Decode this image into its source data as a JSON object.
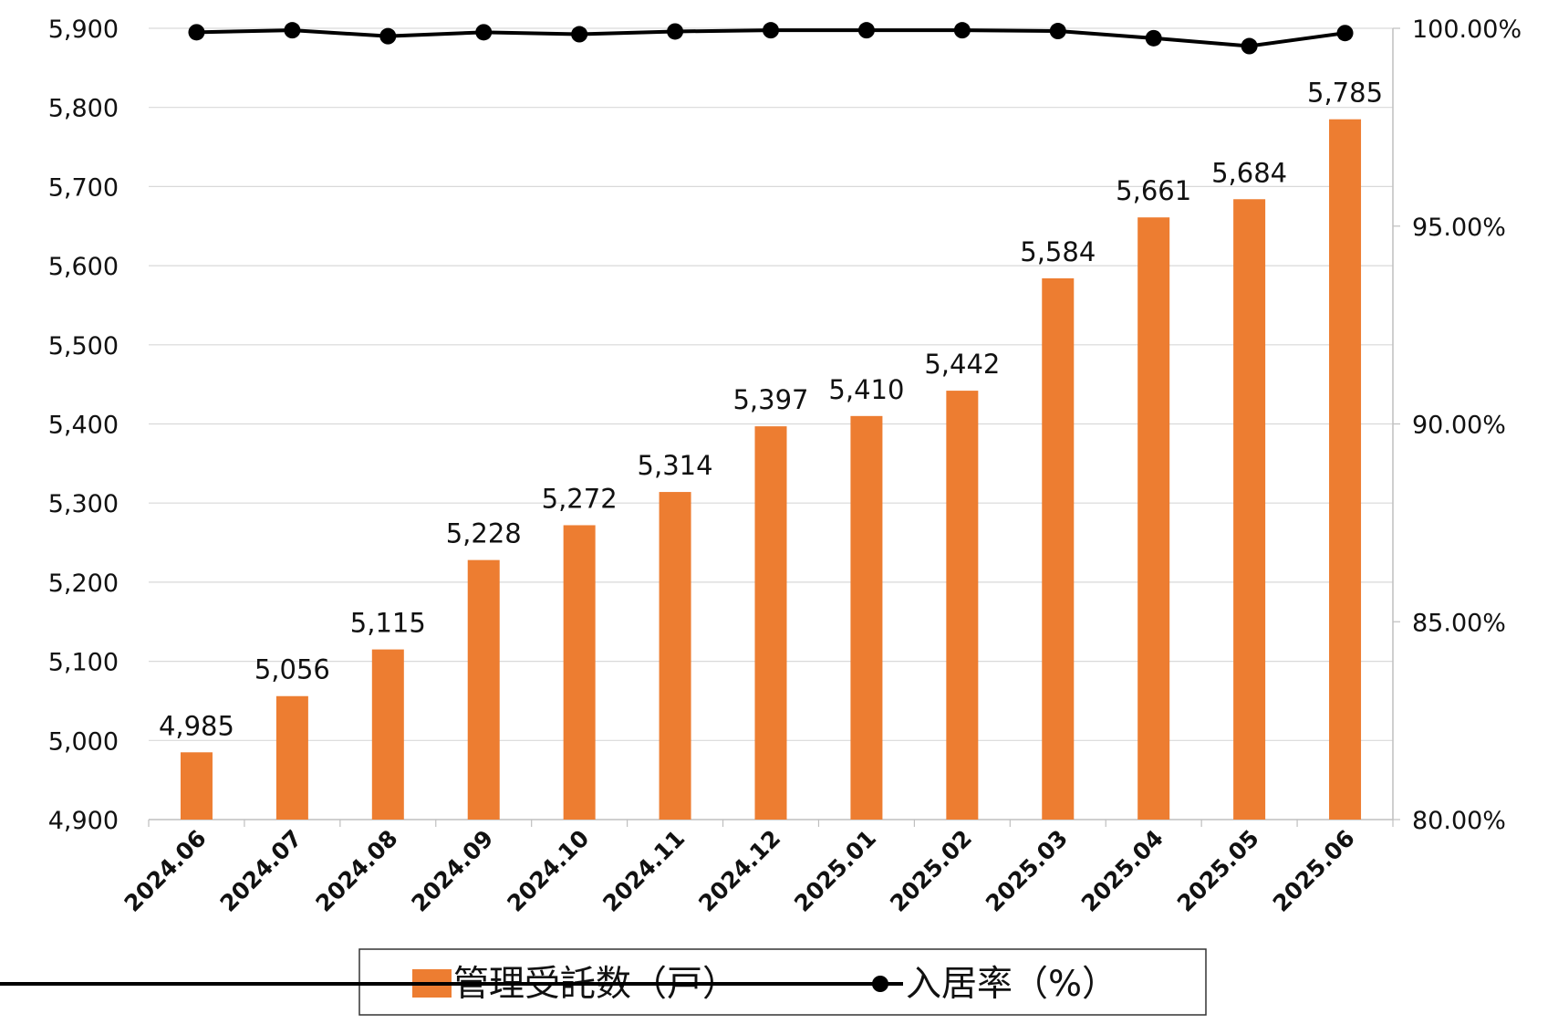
{
  "chart_data": {
    "type": "bar",
    "categories": [
      "2024.06",
      "2024.07",
      "2024.08",
      "2024.09",
      "2024.10",
      "2024.11",
      "2024.12",
      "2025.01",
      "2025.02",
      "2025.03",
      "2025.04",
      "2025.05",
      "2025.06"
    ],
    "series": [
      {
        "name": "管理受託数（戸）",
        "type": "bar",
        "axis": "left",
        "color": "#ED7D31",
        "values": [
          4985,
          5056,
          5115,
          5228,
          5272,
          5314,
          5397,
          5410,
          5442,
          5584,
          5661,
          5684,
          5785
        ],
        "labels": [
          "4,985",
          "5,056",
          "5,115",
          "5,228",
          "5,272",
          "5,314",
          "5,397",
          "5,410",
          "5,442",
          "5,584",
          "5,661",
          "5,684",
          "5,785"
        ]
      },
      {
        "name": "入居率（%）",
        "type": "line",
        "axis": "right",
        "color": "#000000",
        "values": [
          99.9,
          99.95,
          99.8,
          99.9,
          99.85,
          99.92,
          99.95,
          99.95,
          99.95,
          99.93,
          99.75,
          99.55,
          99.88
        ]
      }
    ],
    "y_left": {
      "ylim": [
        4900,
        5900
      ],
      "ticks": [
        "5,900",
        "5,800",
        "5,700",
        "5,600",
        "5,500",
        "5,400",
        "5,300",
        "5,200",
        "5,100",
        "5,000",
        "4,900"
      ],
      "tick_values": [
        5900,
        5800,
        5700,
        5600,
        5500,
        5400,
        5300,
        5200,
        5100,
        5000,
        4900
      ]
    },
    "y_right": {
      "ylim": [
        80,
        100
      ],
      "ticks": [
        "100.00%",
        "95.00%",
        "90.00%",
        "85.00%",
        "80.00%"
      ],
      "tick_values": [
        100,
        95,
        90,
        85,
        80
      ]
    },
    "grid": true,
    "legend_position": "bottom"
  }
}
